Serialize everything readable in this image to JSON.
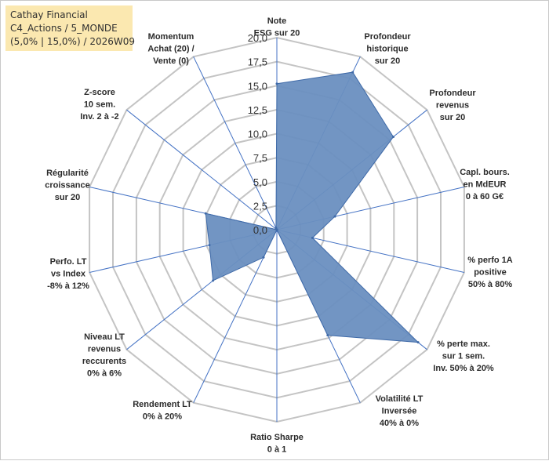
{
  "title_box": {
    "line1": "Cathay Financial",
    "line2": "C4_Actions / 5_MONDE",
    "line3": "(5,0% | 15,0%) / 2026W09"
  },
  "chart_data": {
    "type": "radar",
    "title": "Cathay Financial",
    "r_min": 0,
    "r_max": 20,
    "r_step": 2.5,
    "tick_labels": [
      "0,0",
      "2,5",
      "5,0",
      "7,5",
      "10,0",
      "12,5",
      "15,0",
      "17,5",
      "20,0"
    ],
    "axes": [
      {
        "lines": [
          "Note",
          "ESG sur 20"
        ],
        "value": 15.2
      },
      {
        "lines": [
          "Profondeur",
          "historique",
          "sur 20"
        ],
        "value": 18.2
      },
      {
        "lines": [
          "Profondeur",
          "revenus",
          "sur 20"
        ],
        "value": 15.5
      },
      {
        "lines": [
          "Capl. bours.",
          "en MdEUR",
          "0 à 60 G€"
        ],
        "value": 6.2
      },
      {
        "lines": [
          "% perfo 1A",
          "positive",
          "50% à 80%"
        ],
        "value": 3.8
      },
      {
        "lines": [
          "% perte max.",
          "sur 1 sem.",
          "Inv. 50% à 20%"
        ],
        "value": 18.8
      },
      {
        "lines": [
          "Volatilité LT",
          "Inversée",
          "40% à 0%"
        ],
        "value": 12.2
      },
      {
        "lines": [
          "Ratio Sharpe",
          "0 à 1"
        ],
        "value": 0.0
      },
      {
        "lines": [
          "Rendement LT",
          "0% à 20%"
        ],
        "value": 3.2
      },
      {
        "lines": [
          "Niveau LT",
          "revenus",
          "reccurents",
          "0% à 6%"
        ],
        "value": 8.5
      },
      {
        "lines": [
          "Perfo. LT",
          "vs Index",
          "-8% à 12%"
        ],
        "value": 7.2
      },
      {
        "lines": [
          "Régularité",
          "croissance",
          "sur 20"
        ],
        "value": 7.6
      },
      {
        "lines": [
          "Z-score",
          "10 sem.",
          "Inv. 2 à -2"
        ],
        "value": 0.0
      },
      {
        "lines": [
          "Momentum",
          "Achat (20) /",
          "Vente (0)"
        ],
        "value": 0.2
      }
    ],
    "series": [
      {
        "name": "Cathay Financial",
        "color": "#6a8fc0"
      }
    ],
    "colors": {
      "grid": "#c4c4c4",
      "spoke": "#4472c4",
      "fill": "#6a8fc0",
      "stroke": "#3f6aa8"
    }
  }
}
